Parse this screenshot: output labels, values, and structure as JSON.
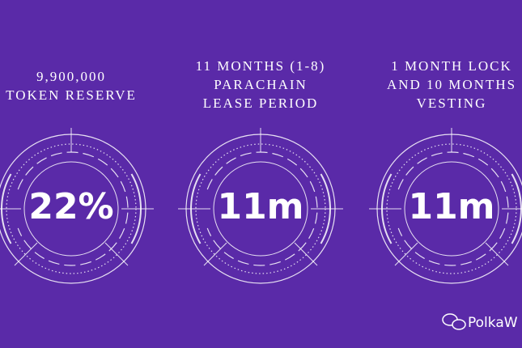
{
  "panels": [
    {
      "label": [
        "9,900,000",
        "TOKEN RESERVE"
      ],
      "value": "22%"
    },
    {
      "label": [
        "11 MONTHS (1-8)",
        "PARACHAIN",
        "LEASE PERIOD"
      ],
      "value": "11m"
    },
    {
      "label": [
        "1 MONTH LOCK",
        "AND 10 MONTHS",
        "VESTING"
      ],
      "value": "11m"
    }
  ],
  "watermark": "PolkaW"
}
